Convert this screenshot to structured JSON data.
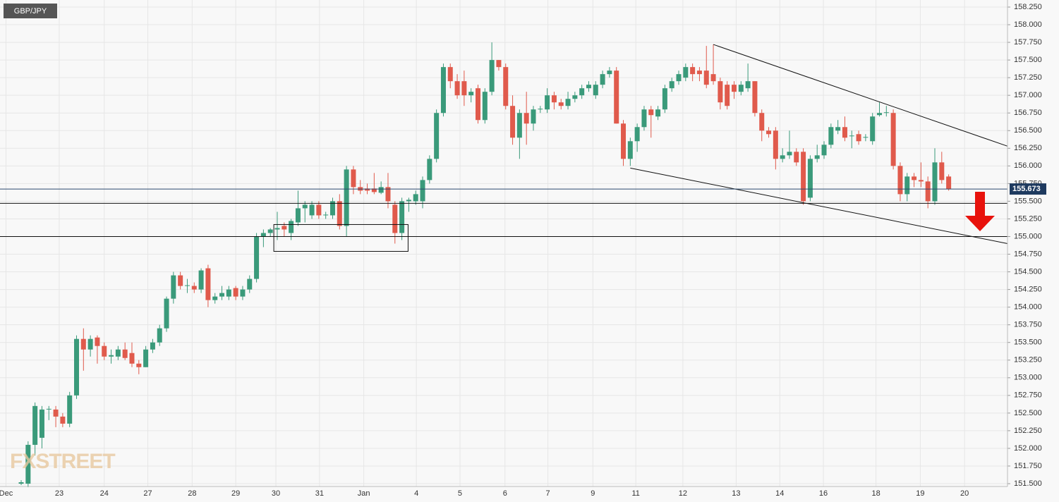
{
  "chart_data": {
    "type": "candlestick",
    "symbol": "GBP/JPY",
    "watermark": "FXSTREET",
    "colors": {
      "up": "#3a9a7a",
      "down": "#e05a4c"
    },
    "candles": [
      [
        151.5,
        151.55,
        151.48,
        151.52
      ],
      [
        151.5,
        152.1,
        151.45,
        152.05
      ],
      [
        152.05,
        152.65,
        151.9,
        152.6
      ],
      [
        152.15,
        152.6,
        152.0,
        152.55
      ],
      [
        152.55,
        152.6,
        152.4,
        152.56
      ],
      [
        152.55,
        152.6,
        152.3,
        152.45
      ],
      [
        152.45,
        152.5,
        152.3,
        152.35
      ],
      [
        152.35,
        152.8,
        152.3,
        152.75
      ],
      [
        152.75,
        153.6,
        152.7,
        153.55
      ],
      [
        153.55,
        153.7,
        153.1,
        153.4
      ],
      [
        153.4,
        153.6,
        153.3,
        153.55
      ],
      [
        153.57,
        153.6,
        153.2,
        153.45
      ],
      [
        153.45,
        153.5,
        153.25,
        153.3
      ],
      [
        153.3,
        153.4,
        153.2,
        153.32
      ],
      [
        153.3,
        153.45,
        153.25,
        153.4
      ],
      [
        153.4,
        153.5,
        153.25,
        153.28
      ],
      [
        153.35,
        153.5,
        153.15,
        153.2
      ],
      [
        153.2,
        153.25,
        153.05,
        153.15
      ],
      [
        153.15,
        153.45,
        153.15,
        153.4
      ],
      [
        153.4,
        153.55,
        153.35,
        153.5
      ],
      [
        153.5,
        153.75,
        153.45,
        153.7
      ],
      [
        153.7,
        154.15,
        153.65,
        154.12
      ],
      [
        154.12,
        154.5,
        154.05,
        154.45
      ],
      [
        154.45,
        154.5,
        154.25,
        154.3
      ],
      [
        154.3,
        154.4,
        154.2,
        154.31
      ],
      [
        154.3,
        154.35,
        154.2,
        154.25
      ],
      [
        154.25,
        154.55,
        154.2,
        154.52
      ],
      [
        154.55,
        154.6,
        154.0,
        154.1
      ],
      [
        154.1,
        154.2,
        154.05,
        154.15
      ],
      [
        154.15,
        154.3,
        154.1,
        154.2
      ],
      [
        154.15,
        154.3,
        154.1,
        154.25
      ],
      [
        154.27,
        154.3,
        154.1,
        154.15
      ],
      [
        154.15,
        154.3,
        154.1,
        154.25
      ],
      [
        154.25,
        154.45,
        154.2,
        154.4
      ],
      [
        154.4,
        155.05,
        154.35,
        155.0
      ],
      [
        155.0,
        155.1,
        154.85,
        155.05
      ],
      [
        155.05,
        155.12,
        155.0,
        155.1
      ],
      [
        155.1,
        155.35,
        154.95,
        155.12
      ],
      [
        155.15,
        155.2,
        155.0,
        155.1
      ],
      [
        155.05,
        155.25,
        154.95,
        155.22
      ],
      [
        155.2,
        155.65,
        155.15,
        155.4
      ],
      [
        155.4,
        155.5,
        155.2,
        155.45
      ],
      [
        155.3,
        155.5,
        155.25,
        155.45
      ],
      [
        155.45,
        155.5,
        155.25,
        155.3
      ],
      [
        155.3,
        155.35,
        155.25,
        155.31
      ],
      [
        155.3,
        155.55,
        155.25,
        155.5
      ],
      [
        155.5,
        155.6,
        155.1,
        155.15
      ],
      [
        155.15,
        156.0,
        155.0,
        155.95
      ],
      [
        155.95,
        156.0,
        155.6,
        155.7
      ],
      [
        155.7,
        155.8,
        155.6,
        155.65
      ],
      [
        155.68,
        155.75,
        155.6,
        155.65
      ],
      [
        155.68,
        155.9,
        155.6,
        155.63
      ],
      [
        155.62,
        155.78,
        155.6,
        155.7
      ],
      [
        155.7,
        155.9,
        155.4,
        155.5
      ],
      [
        155.45,
        155.5,
        154.9,
        155.05
      ],
      [
        155.05,
        155.55,
        154.95,
        155.5
      ],
      [
        155.5,
        155.55,
        155.35,
        155.52
      ],
      [
        155.5,
        155.65,
        155.45,
        155.6
      ],
      [
        155.5,
        155.85,
        155.4,
        155.8
      ],
      [
        155.8,
        156.15,
        155.75,
        156.1
      ],
      [
        156.1,
        156.8,
        156.05,
        156.75
      ],
      [
        156.75,
        157.45,
        156.7,
        157.4
      ],
      [
        157.4,
        157.45,
        157.1,
        157.2
      ],
      [
        157.2,
        157.3,
        156.95,
        157.0
      ],
      [
        157.2,
        157.35,
        156.85,
        157.0
      ],
      [
        157.0,
        157.1,
        156.9,
        157.05
      ],
      [
        157.1,
        157.15,
        156.6,
        156.65
      ],
      [
        156.65,
        157.1,
        156.6,
        157.05
      ],
      [
        157.05,
        157.75,
        157.0,
        157.5
      ],
      [
        157.5,
        157.5,
        157.35,
        157.4
      ],
      [
        157.4,
        157.45,
        156.8,
        156.85
      ],
      [
        156.85,
        157.0,
        156.3,
        156.4
      ],
      [
        156.4,
        156.8,
        156.1,
        156.75
      ],
      [
        156.75,
        157.05,
        156.3,
        156.6
      ],
      [
        156.6,
        156.85,
        156.5,
        156.8
      ],
      [
        156.8,
        156.85,
        156.75,
        156.81
      ],
      [
        156.8,
        157.1,
        156.75,
        157.0
      ],
      [
        157.0,
        157.05,
        156.8,
        156.9
      ],
      [
        156.9,
        156.95,
        156.8,
        156.85
      ],
      [
        156.85,
        157.05,
        156.8,
        156.95
      ],
      [
        156.95,
        157.05,
        156.9,
        157.0
      ],
      [
        157.0,
        157.15,
        156.95,
        157.1
      ],
      [
        157.1,
        157.2,
        157.05,
        157.15
      ],
      [
        157.0,
        157.2,
        156.95,
        157.15
      ],
      [
        157.15,
        157.35,
        157.1,
        157.3
      ],
      [
        157.3,
        157.4,
        157.25,
        157.35
      ],
      [
        157.35,
        157.4,
        156.6,
        156.6
      ],
      [
        156.6,
        156.65,
        156.0,
        156.1
      ],
      [
        156.1,
        156.4,
        156.0,
        156.35
      ],
      [
        156.35,
        156.6,
        156.2,
        156.55
      ],
      [
        156.55,
        156.85,
        156.5,
        156.8
      ],
      [
        156.8,
        156.85,
        156.4,
        156.72
      ],
      [
        156.7,
        156.85,
        156.65,
        156.8
      ],
      [
        156.8,
        157.15,
        156.75,
        157.1
      ],
      [
        157.1,
        157.25,
        157.05,
        157.2
      ],
      [
        157.2,
        157.35,
        157.15,
        157.3
      ],
      [
        157.25,
        157.45,
        157.2,
        157.4
      ],
      [
        157.4,
        157.45,
        157.2,
        157.3
      ],
      [
        157.35,
        157.4,
        157.2,
        157.3
      ],
      [
        157.35,
        157.7,
        157.1,
        157.15
      ],
      [
        157.3,
        157.72,
        157.15,
        157.2
      ],
      [
        157.2,
        157.25,
        156.8,
        156.9
      ],
      [
        157.15,
        157.2,
        156.8,
        156.85
      ],
      [
        157.15,
        157.2,
        156.95,
        157.05
      ],
      [
        157.05,
        157.2,
        157.0,
        157.15
      ],
      [
        157.1,
        157.45,
        157.05,
        157.2
      ],
      [
        157.2,
        157.2,
        156.7,
        156.75
      ],
      [
        156.75,
        156.8,
        156.35,
        156.5
      ],
      [
        156.5,
        156.55,
        156.4,
        156.45
      ],
      [
        156.5,
        156.55,
        155.95,
        156.1
      ],
      [
        156.1,
        156.25,
        156.05,
        156.15
      ],
      [
        156.15,
        156.5,
        156.1,
        156.2
      ],
      [
        156.2,
        156.25,
        156.0,
        156.05
      ],
      [
        156.2,
        156.25,
        155.45,
        155.5
      ],
      [
        155.55,
        156.15,
        155.5,
        156.1
      ],
      [
        156.1,
        156.3,
        156.05,
        156.15
      ],
      [
        156.15,
        156.35,
        156.1,
        156.3
      ],
      [
        156.3,
        156.6,
        156.25,
        156.55
      ],
      [
        156.5,
        156.65,
        156.45,
        156.55
      ],
      [
        156.55,
        156.7,
        156.35,
        156.4
      ],
      [
        156.42,
        156.5,
        156.25,
        156.43
      ],
      [
        156.45,
        156.5,
        156.3,
        156.35
      ],
      [
        156.4,
        156.45,
        156.35,
        156.41
      ],
      [
        156.35,
        156.75,
        156.3,
        156.7
      ],
      [
        156.72,
        156.9,
        156.7,
        156.75
      ],
      [
        156.75,
        156.85,
        156.7,
        156.76
      ],
      [
        156.75,
        156.8,
        155.95,
        156.0
      ],
      [
        156.0,
        156.05,
        155.5,
        155.6
      ],
      [
        155.6,
        155.9,
        155.5,
        155.85
      ],
      [
        155.85,
        155.9,
        155.7,
        155.8
      ],
      [
        155.8,
        156.05,
        155.7,
        155.78
      ],
      [
        155.78,
        155.85,
        155.4,
        155.5
      ],
      [
        155.5,
        156.25,
        155.45,
        156.05
      ],
      [
        156.05,
        156.2,
        155.75,
        155.8
      ],
      [
        155.85,
        155.88,
        155.65,
        155.673
      ]
    ],
    "last_price": 155.673,
    "levels": [
      155.47,
      155.0
    ],
    "trendlines": [
      [
        [
          100,
          157.72
        ],
        [
          142.5,
          156.28
        ]
      ],
      [
        [
          88,
          155.97
        ],
        [
          142.5,
          154.9
        ]
      ]
    ],
    "box": {
      "x": [
        36.5,
        55.9
      ],
      "y": [
        154.79,
        155.17
      ]
    },
    "xlim": [
      -3.06,
      142.5
    ],
    "ylim": [
      151.5,
      158.25
    ],
    "xticks": [
      {
        "value": -2.2,
        "label": "Dec"
      },
      {
        "value": 5.5,
        "label": "23"
      },
      {
        "value": 12,
        "label": "24"
      },
      {
        "value": 18.3,
        "label": "27"
      },
      {
        "value": 24.7,
        "label": "28"
      },
      {
        "value": 31,
        "label": "29"
      },
      {
        "value": 36.8,
        "label": "30"
      },
      {
        "value": 43.1,
        "label": "31"
      },
      {
        "value": 49.5,
        "label": "Jan"
      },
      {
        "value": 57.1,
        "label": "4"
      },
      {
        "value": 63.4,
        "label": "5"
      },
      {
        "value": 69.9,
        "label": "6"
      },
      {
        "value": 76.1,
        "label": "7"
      },
      {
        "value": 82.6,
        "label": "9"
      },
      {
        "value": 88.8,
        "label": "11"
      },
      {
        "value": 95.6,
        "label": "12"
      },
      {
        "value": 103.3,
        "label": "13"
      },
      {
        "value": 109.6,
        "label": "14"
      },
      {
        "value": 115.9,
        "label": "16"
      },
      {
        "value": 123.5,
        "label": "18"
      },
      {
        "value": 129.9,
        "label": "19"
      },
      {
        "value": 136.3,
        "label": "20"
      }
    ],
    "yticks": [
      {
        "value": 151.5,
        "label": "151.500"
      },
      {
        "value": 151.75,
        "label": "151.750"
      },
      {
        "value": 152,
        "label": "152.000"
      },
      {
        "value": 152.25,
        "label": "152.250"
      },
      {
        "value": 152.5,
        "label": "152.500"
      },
      {
        "value": 152.75,
        "label": "152.750"
      },
      {
        "value": 153,
        "label": "153.000"
      },
      {
        "value": 153.25,
        "label": "153.250"
      },
      {
        "value": 153.5,
        "label": "153.500"
      },
      {
        "value": 153.75,
        "label": "153.750"
      },
      {
        "value": 154,
        "label": "154.000"
      },
      {
        "value": 154.25,
        "label": "154.250"
      },
      {
        "value": 154.5,
        "label": "154.500"
      },
      {
        "value": 154.75,
        "label": "154.750"
      },
      {
        "value": 155,
        "label": "155.000"
      },
      {
        "value": 155.25,
        "label": "155.250"
      },
      {
        "value": 155.5,
        "label": "155.500"
      },
      {
        "value": 155.75,
        "label": "155.750"
      },
      {
        "value": 156,
        "label": "156.000"
      },
      {
        "value": 156.25,
        "label": "156.250"
      },
      {
        "value": 156.5,
        "label": "156.500"
      },
      {
        "value": 156.75,
        "label": "156.750"
      },
      {
        "value": 157,
        "label": "157.000"
      },
      {
        "value": 157.25,
        "label": "157.250"
      },
      {
        "value": 157.5,
        "label": "157.500"
      },
      {
        "value": 157.75,
        "label": "157.750"
      },
      {
        "value": 158,
        "label": "158.000"
      },
      {
        "value": 158.25,
        "label": "158.250"
      }
    ],
    "grid": true
  }
}
